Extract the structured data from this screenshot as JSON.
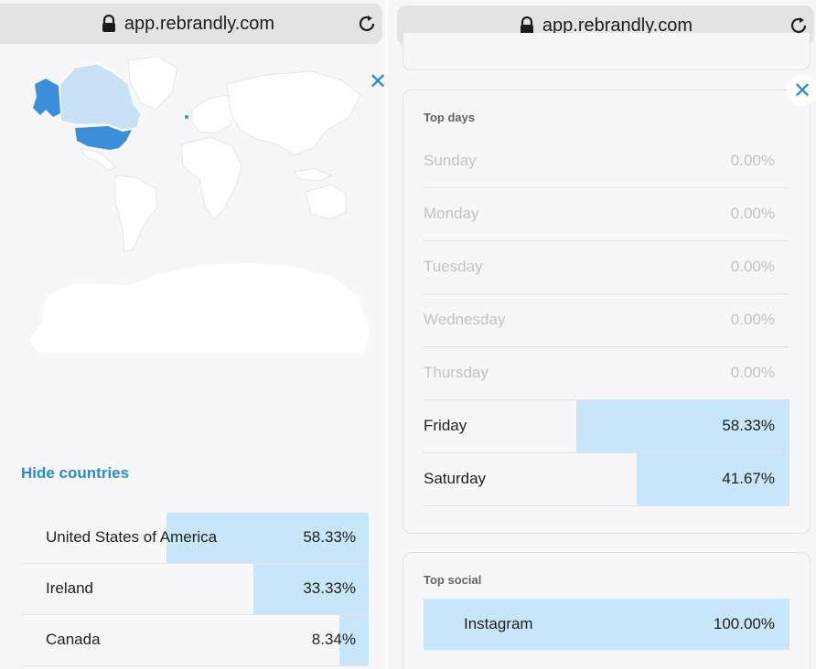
{
  "left_panel": {
    "url": "app.rebrandly.com",
    "close_symbol": "✕",
    "hide_countries_label": "Hide countries",
    "countries": [
      {
        "name": "United States of America",
        "percent": "58.33%",
        "share": 58.33
      },
      {
        "name": "Ireland",
        "percent": "33.33%",
        "share": 33.33
      },
      {
        "name": "Canada",
        "percent": "8.34%",
        "share": 8.34
      }
    ],
    "map_colors": {
      "usa": "#3b8fd9",
      "canada": "#c8e1f5",
      "ireland": "#3b8fd9",
      "land": "#ffffff"
    }
  },
  "right_panel": {
    "url": "app.rebrandly.com",
    "close_symbol": "✕",
    "top_days_title": "Top days",
    "days": [
      {
        "name": "Sunday",
        "percent": "0.00%",
        "share": 0
      },
      {
        "name": "Monday",
        "percent": "0.00%",
        "share": 0
      },
      {
        "name": "Tuesday",
        "percent": "0.00%",
        "share": 0
      },
      {
        "name": "Wednesday",
        "percent": "0.00%",
        "share": 0
      },
      {
        "name": "Thursday",
        "percent": "0.00%",
        "share": 0
      },
      {
        "name": "Friday",
        "percent": "58.33%",
        "share": 58.33
      },
      {
        "name": "Saturday",
        "percent": "41.67%",
        "share": 41.67
      }
    ],
    "top_social_title": "Top social",
    "social": {
      "name": "Instagram",
      "percent": "100.00%",
      "share": 100
    }
  },
  "colors": {
    "accent": "#2b8ccc",
    "bar_fill": "#c7e6f9"
  },
  "icons": {
    "lock": "lock-icon",
    "reload": "reload-icon",
    "close": "close-icon"
  }
}
